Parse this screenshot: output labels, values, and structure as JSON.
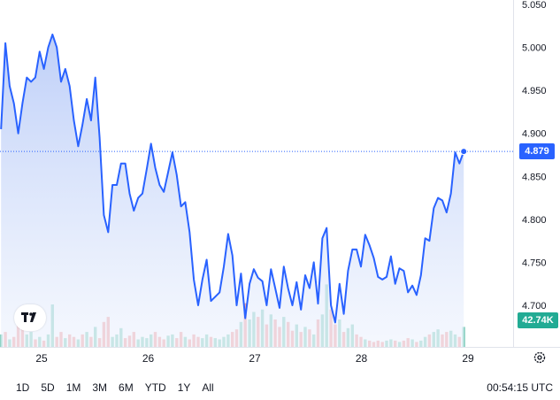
{
  "chart_data": {
    "type": "line",
    "yticks": [
      "5.050",
      "5.000",
      "4.950",
      "4.900",
      "4.850",
      "4.800",
      "4.750",
      "4.700"
    ],
    "yvals": [
      5.05,
      5.0,
      4.95,
      4.9,
      4.85,
      4.8,
      4.75,
      4.7
    ],
    "ylim": [
      4.685,
      5.052
    ],
    "xticks": [
      "25",
      "26",
      "27",
      "28",
      "29"
    ],
    "xtick_pos": [
      1,
      2,
      3,
      4,
      5
    ],
    "x_start": 0.62,
    "x_end": 4.96,
    "series": [
      {
        "values": [
          4.905,
          5.005,
          4.955,
          4.935,
          4.9,
          4.935,
          4.965,
          4.96,
          4.965,
          4.995,
          4.975,
          5.0,
          5.015,
          5.0,
          4.96,
          4.975,
          4.955,
          4.915,
          4.885,
          4.91,
          4.94,
          4.915,
          4.965,
          4.895,
          4.805,
          4.785,
          4.84,
          4.84,
          4.865,
          4.865,
          4.83,
          4.81,
          4.825,
          4.83,
          4.858,
          4.888,
          4.86,
          4.84,
          4.832,
          4.855,
          4.878,
          4.852,
          4.815,
          4.82,
          4.785,
          4.73,
          4.7,
          4.73,
          4.753,
          4.705,
          4.71,
          4.715,
          4.745,
          4.783,
          4.758,
          4.7,
          4.737,
          4.685,
          4.725,
          4.742,
          4.732,
          4.728,
          4.7,
          4.742,
          4.72,
          4.697,
          4.745,
          4.72,
          4.7,
          4.727,
          4.695,
          4.735,
          4.72,
          4.75,
          4.702,
          4.778,
          4.79,
          4.7,
          4.68,
          4.725,
          4.69,
          4.74,
          4.765,
          4.765,
          4.745,
          4.782,
          4.77,
          4.755,
          4.733,
          4.73,
          4.733,
          4.757,
          4.725,
          4.743,
          4.74,
          4.715,
          4.723,
          4.712,
          4.735,
          4.778,
          4.775,
          4.813,
          4.825,
          4.822,
          4.808,
          4.83,
          4.878,
          4.865,
          4.879
        ]
      }
    ],
    "last_price": "4.879",
    "volume": {
      "values": [
        0.1,
        0.12,
        0.06,
        0.08,
        0.3,
        0.2,
        0.1,
        0.12,
        0.06,
        0.08,
        0.05,
        0.1,
        0.34,
        0.08,
        0.12,
        0.07,
        0.1,
        0.08,
        0.06,
        0.1,
        0.12,
        0.08,
        0.16,
        0.07,
        0.2,
        0.24,
        0.08,
        0.1,
        0.15,
        0.07,
        0.09,
        0.12,
        0.06,
        0.08,
        0.07,
        0.1,
        0.12,
        0.08,
        0.06,
        0.09,
        0.1,
        0.07,
        0.12,
        0.08,
        0.06,
        0.1,
        0.08,
        0.07,
        0.1,
        0.08,
        0.07,
        0.06,
        0.08,
        0.1,
        0.12,
        0.14,
        0.2,
        0.35,
        0.22,
        0.28,
        0.24,
        0.3,
        0.18,
        0.26,
        0.22,
        0.16,
        0.24,
        0.2,
        0.13,
        0.18,
        0.12,
        0.16,
        0.14,
        0.1,
        0.22,
        0.26,
        0.5,
        0.3,
        0.18,
        0.22,
        0.12,
        0.15,
        0.18,
        0.1,
        0.08,
        0.06,
        0.05,
        0.04,
        0.05,
        0.04,
        0.05,
        0.06,
        0.05,
        0.04,
        0.05,
        0.07,
        0.06,
        0.04,
        0.05,
        0.08,
        0.1,
        0.12,
        0.14,
        0.1,
        0.12,
        0.13,
        0.1,
        0.08,
        0.16
      ],
      "up_flags": [
        1,
        0,
        1,
        0,
        0,
        0,
        1,
        1,
        0,
        1,
        0,
        1,
        1,
        0,
        0,
        1,
        0,
        0,
        1,
        0,
        1,
        0,
        1,
        0,
        0,
        0,
        1,
        1,
        1,
        0,
        0,
        0,
        1,
        1,
        1,
        1,
        0,
        0,
        0,
        1,
        1,
        0,
        0,
        1,
        0,
        0,
        0,
        1,
        1,
        0,
        1,
        1,
        1,
        1,
        0,
        0,
        1,
        0,
        1,
        1,
        0,
        1,
        0,
        1,
        0,
        0,
        1,
        0,
        0,
        1,
        0,
        1,
        0,
        1,
        0,
        1,
        1,
        0,
        0,
        1,
        0,
        1,
        1,
        0,
        0,
        1,
        0,
        0,
        0,
        0,
        1,
        1,
        0,
        1,
        0,
        0,
        1,
        0,
        1,
        1,
        0,
        1,
        1,
        0,
        0,
        1,
        1,
        0,
        1
      ],
      "last_volume": "42.74K"
    },
    "colors": {
      "line": "#2962ff",
      "fill_top": "#b3c7f7",
      "fill_bottom": "#eef3fd",
      "vol_up": "#8fd3c4",
      "vol_down": "#f4a7a7",
      "price_label_bg": "#2962ff",
      "vol_label_bg": "#22ab94"
    }
  },
  "range_buttons": [
    "1D",
    "5D",
    "1M",
    "3M",
    "6M",
    "YTD",
    "1Y",
    "All"
  ],
  "clock": "00:54:15 UTC",
  "logo_text": "17",
  "icons": {
    "logo": "tradingview-logo-icon",
    "settings": "gear-icon"
  }
}
